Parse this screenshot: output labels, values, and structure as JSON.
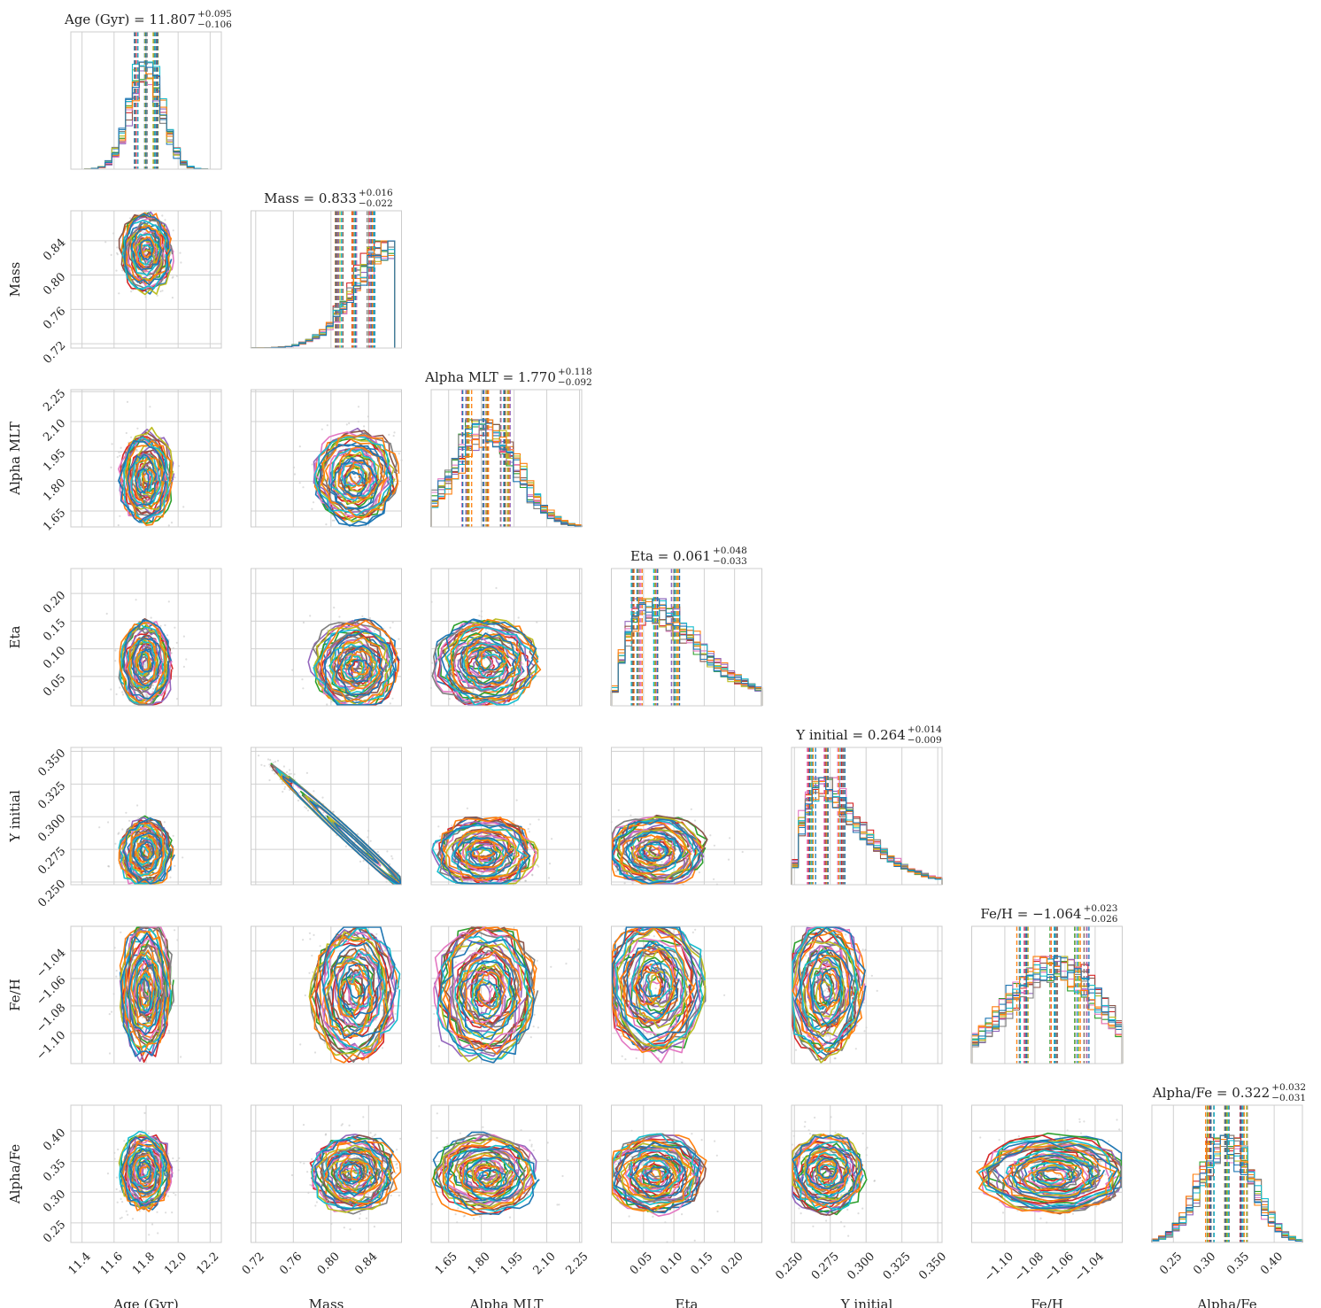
{
  "chart_data": {
    "type": "corner",
    "parameters": [
      {
        "key": "age",
        "label": "Age (Gyr)",
        "title_name": "Age (Gyr)",
        "median": "11.807",
        "plus": "+0.095",
        "minus": "−0.106",
        "range": [
          11.33,
          12.27
        ],
        "ticks": [
          11.4,
          11.6,
          11.8,
          12.0,
          12.2
        ],
        "tick_labels": [
          "11.4",
          "11.6",
          "11.8",
          "12.0",
          "12.2"
        ],
        "center": 11.8,
        "spread": 0.09
      },
      {
        "key": "mass",
        "label": "Mass",
        "title_name": "Mass",
        "median": "0.833",
        "plus": "+0.016",
        "minus": "−0.022",
        "range": [
          0.715,
          0.875
        ],
        "ticks": [
          0.72,
          0.76,
          0.8,
          0.84
        ],
        "tick_labels": [
          "0.72",
          "0.76",
          "0.80",
          "0.84"
        ],
        "center": 0.825,
        "spread": 0.025
      },
      {
        "key": "alpha_mlt",
        "label": "Alpha MLT",
        "title_name": "Alpha MLT",
        "median": "1.770",
        "plus": "+0.118",
        "minus": "−0.092",
        "range": [
          1.57,
          2.26
        ],
        "ticks": [
          1.65,
          1.8,
          1.95,
          2.1,
          2.25
        ],
        "tick_labels": [
          "1.65",
          "1.80",
          "1.95",
          "2.10",
          "2.25"
        ],
        "center": 1.82,
        "spread": 0.13
      },
      {
        "key": "eta",
        "label": "Eta",
        "title_name": "Eta",
        "median": "0.061",
        "plus": "+0.048",
        "minus": "−0.033",
        "range": [
          -0.003,
          0.245
        ],
        "ticks": [
          0.05,
          0.1,
          0.15,
          0.2
        ],
        "tick_labels": [
          "0.05",
          "0.10",
          "0.15",
          "0.20"
        ],
        "center": 0.07,
        "spread": 0.045
      },
      {
        "key": "y_initial",
        "label": "Y initial",
        "title_name": "Y initial",
        "median": "0.264",
        "plus": "+0.014",
        "minus": "−0.009",
        "range": [
          0.248,
          0.353
        ],
        "ticks": [
          0.25,
          0.275,
          0.3,
          0.325,
          0.35
        ],
        "tick_labels": [
          "0.250",
          "0.275",
          "0.300",
          "0.325",
          "0.350"
        ],
        "center": 0.272,
        "spread": 0.015
      },
      {
        "key": "fe_h",
        "label": "Fe/H",
        "title_name": "Fe/H",
        "median": "−1.064",
        "plus": "+0.023",
        "minus": "−0.026",
        "range": [
          -1.122,
          -1.022
        ],
        "ticks": [
          -1.1,
          -1.08,
          -1.06,
          -1.04
        ],
        "tick_labels": [
          "−1.10",
          "−1.08",
          "−1.06",
          "−1.04"
        ],
        "center": -1.068,
        "spread": 0.028
      },
      {
        "key": "alpha_fe",
        "label": "Alpha/Fe",
        "title_name": "Alpha/Fe",
        "median": "0.322",
        "plus": "+0.032",
        "minus": "−0.031",
        "range": [
          0.218,
          0.442
        ],
        "ticks": [
          0.25,
          0.3,
          0.35,
          0.4
        ],
        "tick_labels": [
          "0.25",
          "0.30",
          "0.35",
          "0.40"
        ],
        "center": 0.33,
        "spread": 0.035
      }
    ],
    "title_template": "{name} = {median}",
    "series_colors": [
      "#1f77b4",
      "#ff7f0e",
      "#2ca02c",
      "#d62728",
      "#9467bd",
      "#8c564b",
      "#e377c2",
      "#7f7f7f",
      "#bcbd22",
      "#17becf",
      "#ff7f0e",
      "#1f77b4"
    ],
    "grid": true,
    "background": "#ffffff",
    "grid_color": "#d0d0d0",
    "scatter_color": "#9e9e9e"
  }
}
